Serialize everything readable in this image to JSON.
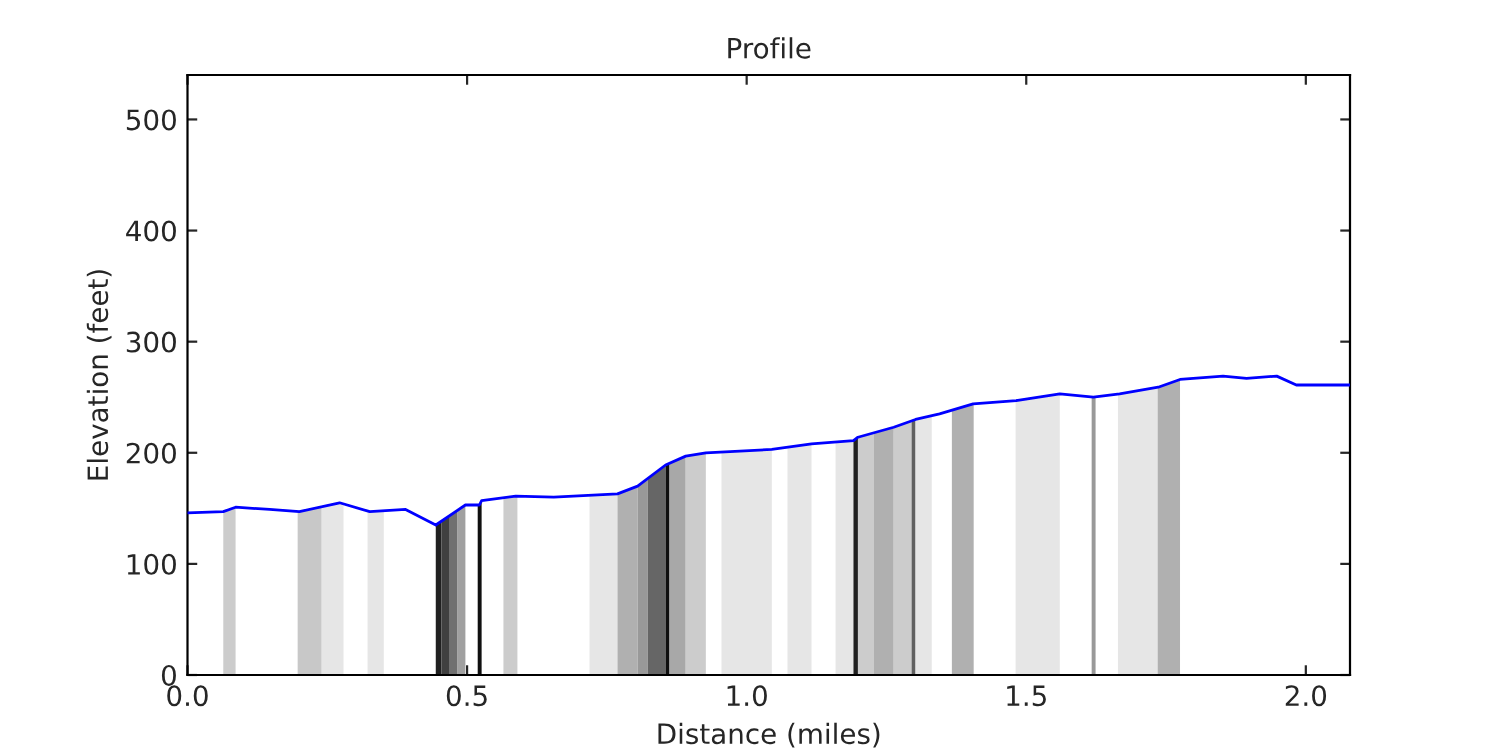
{
  "chart_data": {
    "type": "line",
    "title": "Profile",
    "xlabel": "Distance (miles)",
    "ylabel": "Elevation (feet)",
    "series": [
      {
        "color": "#0000ff",
        "x": [
          0,
          0.064,
          0.086,
          0.147,
          0.2,
          0.272,
          0.326,
          0.39,
          0.444,
          0.497,
          0.522,
          0.526,
          0.587,
          0.655,
          0.769,
          0.805,
          0.855,
          0.891,
          0.927,
          1.045,
          1.116,
          1.191,
          1.199,
          1.263,
          1.302,
          1.345,
          1.405,
          1.482,
          1.56,
          1.62,
          1.667,
          1.736,
          1.775,
          1.852,
          1.894,
          1.948,
          1.983,
          2.079
        ],
        "values": [
          146,
          147,
          151,
          149,
          147,
          155,
          147,
          149,
          135,
          153,
          153,
          157,
          161,
          160,
          163,
          170,
          189,
          197,
          200,
          203,
          208,
          211,
          214,
          223,
          230,
          235,
          244,
          247,
          253,
          250,
          253,
          259,
          266,
          269,
          267,
          269,
          261,
          261
        ]
      }
    ],
    "bands": [
      {
        "axis": "x",
        "from": 0.064,
        "to": 0.086,
        "color": "#cccccc"
      },
      {
        "axis": "x",
        "from": 0.197,
        "to": 0.24,
        "color": "#c8c8c8"
      },
      {
        "axis": "x",
        "from": 0.24,
        "to": 0.279,
        "color": "#e6e6e6"
      },
      {
        "axis": "x",
        "from": 0.322,
        "to": 0.351,
        "color": "#e6e6e6"
      },
      {
        "axis": "x",
        "from": 0.444,
        "to": 0.454,
        "color": "#202020"
      },
      {
        "axis": "x",
        "from": 0.454,
        "to": 0.469,
        "color": "#404040"
      },
      {
        "axis": "x",
        "from": 0.469,
        "to": 0.483,
        "color": "#707070"
      },
      {
        "axis": "x",
        "from": 0.483,
        "to": 0.497,
        "color": "#a0a0a0"
      },
      {
        "axis": "x",
        "from": 0.519,
        "to": 0.526,
        "color": "#101010"
      },
      {
        "axis": "x",
        "from": 0.565,
        "to": 0.59,
        "color": "#cccccc"
      },
      {
        "axis": "x",
        "from": 0.719,
        "to": 0.769,
        "color": "#e6e6e6"
      },
      {
        "axis": "x",
        "from": 0.769,
        "to": 0.805,
        "color": "#b0b0b0"
      },
      {
        "axis": "x",
        "from": 0.805,
        "to": 0.823,
        "color": "#999999"
      },
      {
        "axis": "x",
        "from": 0.823,
        "to": 0.855,
        "color": "#666666"
      },
      {
        "axis": "x",
        "from": 0.855,
        "to": 0.862,
        "color": "#101010"
      },
      {
        "axis": "x",
        "from": 0.862,
        "to": 0.891,
        "color": "#a8a8a8"
      },
      {
        "axis": "x",
        "from": 0.891,
        "to": 0.927,
        "color": "#cccccc"
      },
      {
        "axis": "x",
        "from": 0.955,
        "to": 1.045,
        "color": "#e6e6e6"
      },
      {
        "axis": "x",
        "from": 1.073,
        "to": 1.116,
        "color": "#e6e6e6"
      },
      {
        "axis": "x",
        "from": 1.159,
        "to": 1.191,
        "color": "#e6e6e6"
      },
      {
        "axis": "x",
        "from": 1.191,
        "to": 1.199,
        "color": "#202020"
      },
      {
        "axis": "x",
        "from": 1.199,
        "to": 1.227,
        "color": "#cccccc"
      },
      {
        "axis": "x",
        "from": 1.227,
        "to": 1.263,
        "color": "#b0b0b0"
      },
      {
        "axis": "x",
        "from": 1.263,
        "to": 1.295,
        "color": "#cccccc"
      },
      {
        "axis": "x",
        "from": 1.295,
        "to": 1.302,
        "color": "#606060"
      },
      {
        "axis": "x",
        "from": 1.302,
        "to": 1.331,
        "color": "#e6e6e6"
      },
      {
        "axis": "x",
        "from": 1.367,
        "to": 1.406,
        "color": "#b0b0b0"
      },
      {
        "axis": "x",
        "from": 1.481,
        "to": 1.56,
        "color": "#e6e6e6"
      },
      {
        "axis": "x",
        "from": 1.617,
        "to": 1.624,
        "color": "#999999"
      },
      {
        "axis": "x",
        "from": 1.664,
        "to": 1.735,
        "color": "#e6e6e6"
      },
      {
        "axis": "x",
        "from": 1.735,
        "to": 1.775,
        "color": "#b0b0b0"
      }
    ],
    "xlim": [
      0,
      2.079
    ],
    "ylim": [
      0,
      540
    ],
    "xticks": [
      {
        "value": 0,
        "label": "0.0"
      },
      {
        "value": 0.5,
        "label": "0.5"
      },
      {
        "value": 1,
        "label": "1.0"
      },
      {
        "value": 1.5,
        "label": "1.5"
      },
      {
        "value": 2,
        "label": "2.0"
      }
    ],
    "yticks": [
      0,
      100,
      200,
      300,
      400,
      500
    ],
    "grid": false,
    "line_style": "solid"
  }
}
